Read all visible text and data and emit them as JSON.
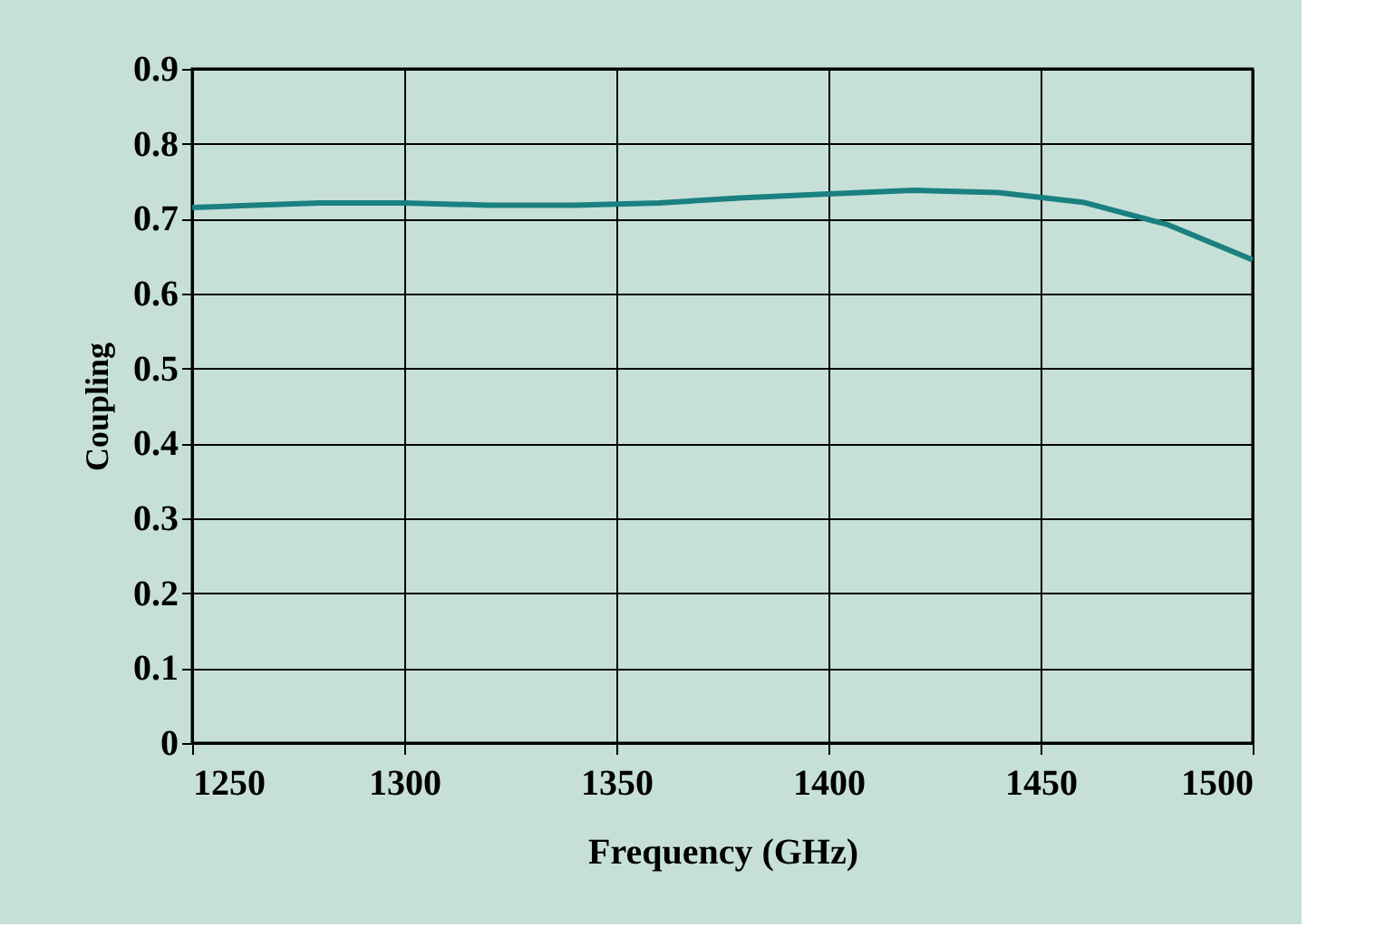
{
  "chart_data": {
    "type": "line",
    "xlabel": "Frequency (GHz)",
    "ylabel": "Coupling",
    "x": [
      1250,
      1260,
      1280,
      1300,
      1320,
      1340,
      1360,
      1380,
      1400,
      1420,
      1440,
      1460,
      1480,
      1500
    ],
    "series": [
      {
        "color": "#1a8080",
        "values": [
          0.715,
          0.717,
          0.721,
          0.721,
          0.718,
          0.718,
          0.721,
          0.728,
          0.733,
          0.738,
          0.735,
          0.722,
          0.692,
          0.645
        ]
      }
    ],
    "xlim": [
      1250,
      1500
    ],
    "xticks": [
      1250,
      1300,
      1350,
      1400,
      1450,
      1500
    ],
    "ylim": [
      0,
      0.9
    ],
    "yticks": [
      0,
      0.1,
      0.2,
      0.3,
      0.4,
      0.5,
      0.6,
      0.7,
      0.8,
      0.9
    ],
    "grid": true,
    "legend": false,
    "marker": "none",
    "line_style": "solid"
  }
}
